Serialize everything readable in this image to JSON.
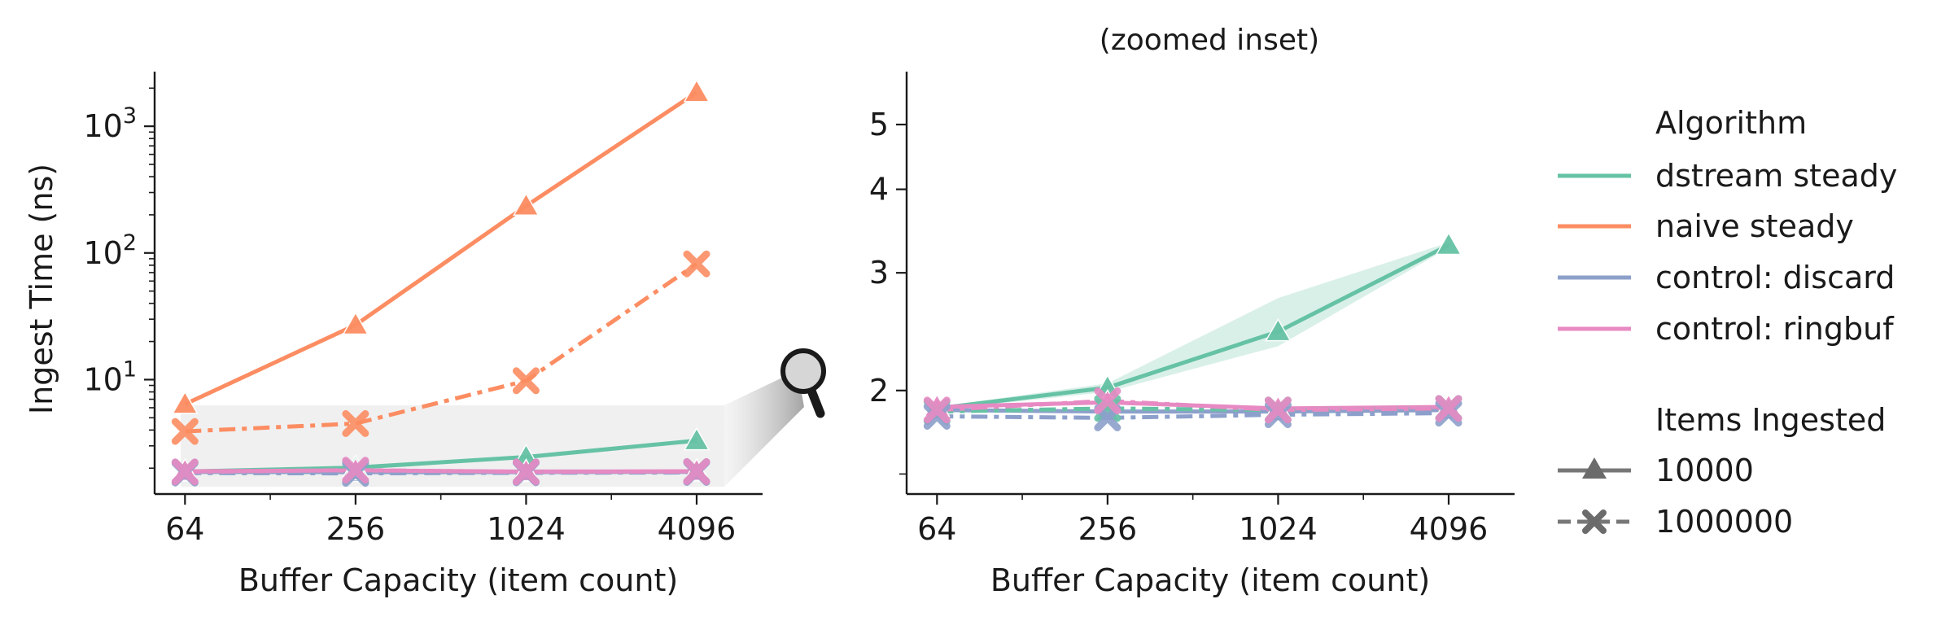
{
  "chart_data": [
    {
      "type": "line",
      "xlabel": "Buffer Capacity (item count)",
      "ylabel": "Ingest Time (ns)",
      "x_scale": "log2",
      "y_scale": "log10",
      "x": [
        64,
        256,
        1024,
        4096
      ],
      "xticklabels": [
        "64",
        "256",
        "1024",
        "4096"
      ],
      "xlim": [
        50,
        7000
      ],
      "ylim": [
        1.25,
        2700
      ],
      "yticks": [
        10,
        100,
        1000
      ],
      "yticklabels": [
        "10",
        "10",
        "10"
      ],
      "yticklabel_exponents": [
        "1",
        "2",
        "3"
      ],
      "grid": false,
      "series": [
        {
          "name": "dstream steady",
          "items": "10000",
          "values": [
            1.88,
            2.02,
            2.45,
            3.3
          ]
        },
        {
          "name": "naive steady",
          "items": "10000",
          "values": [
            6.4,
            27,
            235,
            1850
          ]
        },
        {
          "name": "control: discard",
          "items": "10000",
          "values": [
            1.87,
            1.86,
            1.86,
            1.87
          ]
        },
        {
          "name": "control: ringbuf",
          "items": "10000",
          "values": [
            1.89,
            1.92,
            1.88,
            1.89
          ]
        },
        {
          "name": "dstream steady",
          "items": "1000000",
          "values": [
            1.86,
            1.88,
            1.87,
            1.88
          ]
        },
        {
          "name": "naive steady",
          "items": "1000000",
          "values": [
            3.9,
            4.5,
            9.8,
            82
          ]
        },
        {
          "name": "control: discard",
          "items": "1000000",
          "values": [
            1.83,
            1.82,
            1.84,
            1.85
          ]
        },
        {
          "name": "control: ringbuf",
          "items": "1000000",
          "values": [
            1.87,
            1.93,
            1.87,
            1.88
          ]
        }
      ]
    },
    {
      "type": "line",
      "title": "(zoomed inset)",
      "xlabel": "Buffer Capacity (item count)",
      "ylabel": "",
      "x_scale": "log2",
      "y_scale": "log10",
      "x": [
        64,
        256,
        1024,
        4096
      ],
      "xticklabels": [
        "64",
        "256",
        "1024",
        "4096"
      ],
      "xlim": [
        50,
        7000
      ],
      "ylim": [
        1.4,
        6.0
      ],
      "yticks": [
        2,
        3,
        4,
        5
      ],
      "yticklabels": [
        "2",
        "3",
        "4",
        "5"
      ],
      "yminor": [
        1.5
      ],
      "grid": false,
      "series": [
        {
          "name": "dstream steady",
          "items": "10000",
          "values": [
            1.88,
            2.02,
            2.45,
            3.3
          ],
          "band_low": [
            1.87,
            1.99,
            2.33,
            3.27
          ],
          "band_high": [
            1.89,
            2.05,
            2.75,
            3.33
          ]
        },
        {
          "name": "control: discard",
          "items": "10000",
          "values": [
            1.87,
            1.86,
            1.86,
            1.87
          ]
        },
        {
          "name": "control: ringbuf",
          "items": "10000",
          "values": [
            1.89,
            1.92,
            1.88,
            1.89
          ]
        },
        {
          "name": "dstream steady",
          "items": "1000000",
          "values": [
            1.86,
            1.88,
            1.87,
            1.88
          ]
        },
        {
          "name": "control: discard",
          "items": "1000000",
          "values": [
            1.83,
            1.82,
            1.84,
            1.85
          ]
        },
        {
          "name": "control: ringbuf",
          "items": "1000000",
          "values": [
            1.87,
            1.93,
            1.87,
            1.88
          ]
        }
      ]
    }
  ],
  "legend": {
    "placement": "right",
    "algorithm_title": "Algorithm",
    "algorithms": [
      {
        "label": "dstream steady",
        "color": "#66c2a5"
      },
      {
        "label": "naive steady",
        "color": "#fc8d62"
      },
      {
        "label": "control: discard",
        "color": "#8da0cb"
      },
      {
        "label": "control: ringbuf",
        "color": "#e78ac3"
      }
    ],
    "items_title": "Items Ingested",
    "items": [
      {
        "label": "10000",
        "marker": "triangle",
        "dash": "solid",
        "color": "#777777"
      },
      {
        "label": "1000000",
        "marker": "x",
        "dash": "dashed",
        "color": "#777777"
      }
    ]
  },
  "inset_indicator_icon": "magnifier-icon"
}
